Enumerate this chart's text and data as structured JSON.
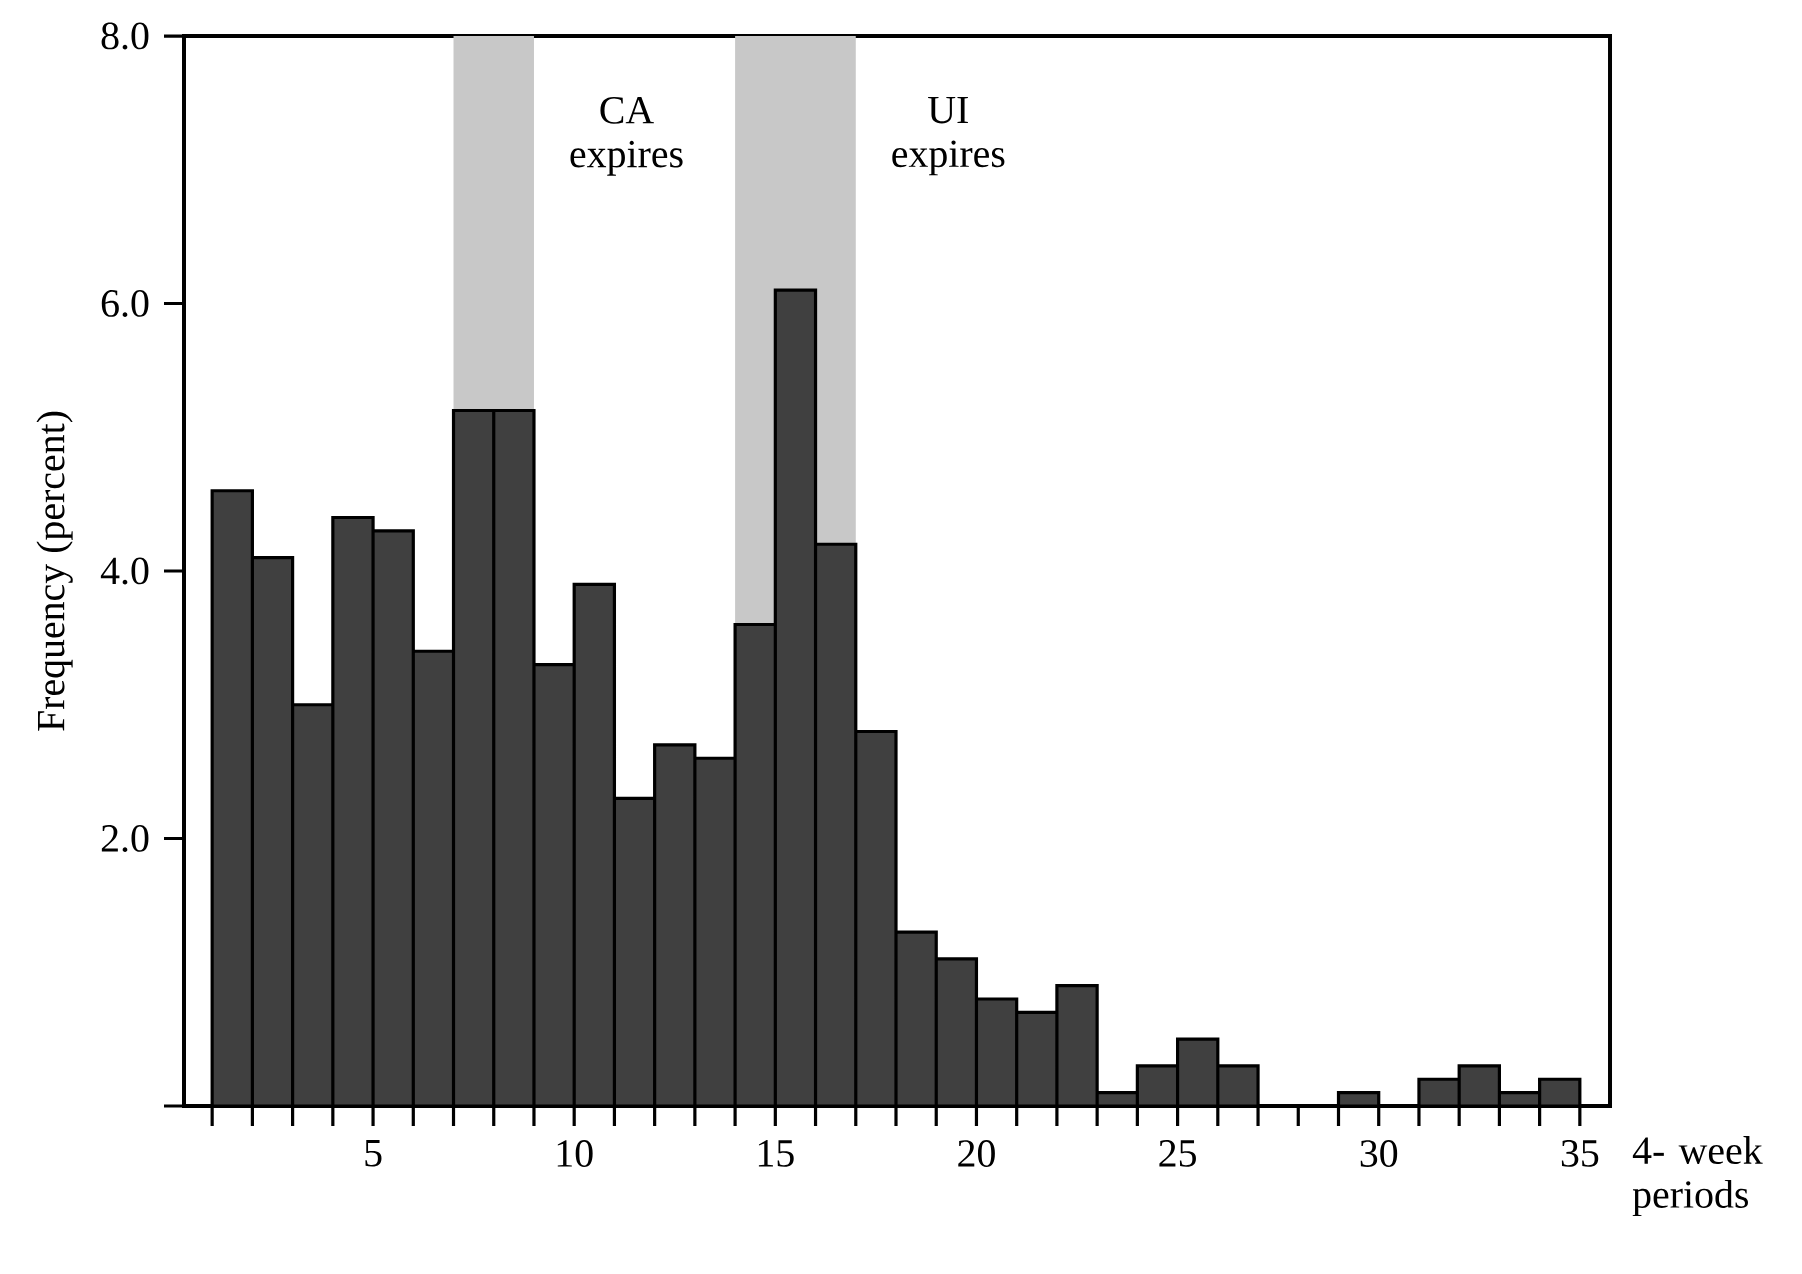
{
  "chart_data": {
    "type": "histogram",
    "xlabel": "4- week periods",
    "ylabel": "Frequency (percent)",
    "bins": [
      1,
      2,
      3,
      4,
      5,
      6,
      7,
      8,
      9,
      10,
      11,
      12,
      13,
      14,
      15,
      16,
      17,
      18,
      19,
      20,
      21,
      22,
      23,
      24,
      25,
      26,
      27,
      28,
      29,
      30,
      31,
      32,
      33,
      34,
      35
    ],
    "values": [
      4.6,
      4.1,
      3.0,
      4.4,
      4.3,
      3.4,
      5.2,
      5.2,
      3.3,
      3.9,
      2.3,
      2.7,
      2.6,
      3.6,
      6.1,
      4.2,
      2.8,
      1.3,
      1.1,
      0.8,
      0.7,
      0.9,
      0.1,
      0.3,
      0.5,
      0.3,
      0,
      0,
      0.1,
      0,
      0.2,
      0.3,
      0.1,
      0.2
    ],
    "color": "#404040",
    "xlim": [
      0.3,
      35.75
    ],
    "ylim": [
      0,
      8.0
    ],
    "xticks": [
      {
        "value": 1,
        "label": null
      },
      {
        "value": 2,
        "label": null
      },
      {
        "value": 3,
        "label": null
      },
      {
        "value": 4,
        "label": null
      },
      5,
      {
        "value": 6,
        "label": null
      },
      {
        "value": 7,
        "label": null
      },
      {
        "value": 8,
        "label": null
      },
      {
        "value": 9,
        "label": null
      },
      10,
      {
        "value": 11,
        "label": null
      },
      {
        "value": 12,
        "label": null
      },
      {
        "value": 13,
        "label": null
      },
      {
        "value": 14,
        "label": null
      },
      15,
      {
        "value": 16,
        "label": null
      },
      {
        "value": 17,
        "label": null
      },
      {
        "value": 18,
        "label": null
      },
      {
        "value": 19,
        "label": null
      },
      20,
      {
        "value": 21,
        "label": null
      },
      {
        "value": 22,
        "label": null
      },
      {
        "value": 23,
        "label": null
      },
      {
        "value": 24,
        "label": null
      },
      25,
      {
        "value": 26,
        "label": null
      },
      {
        "value": 27,
        "label": null
      },
      {
        "value": 28,
        "label": null
      },
      {
        "value": 29,
        "label": null
      },
      30,
      {
        "value": 31,
        "label": null
      },
      {
        "value": 32,
        "label": null
      },
      {
        "value": 33,
        "label": null
      },
      {
        "value": 34,
        "label": null
      },
      35
    ],
    "yticks": [
      {
        "value": 0,
        "label": null
      },
      {
        "value": 2,
        "label": "2.0"
      },
      {
        "value": 4,
        "label": "4.0"
      },
      {
        "value": 6,
        "label": "6.0"
      },
      {
        "value": 8,
        "label": "8.0"
      }
    ],
    "bands": [
      {
        "axis": "x",
        "from": 7,
        "to": 9,
        "label": "CA expires",
        "color": "#c8c8c8"
      },
      {
        "axis": "x",
        "from": 14,
        "to": 17,
        "label": "UI expires",
        "color": "#c8c8c8"
      }
    ],
    "grid": false
  }
}
